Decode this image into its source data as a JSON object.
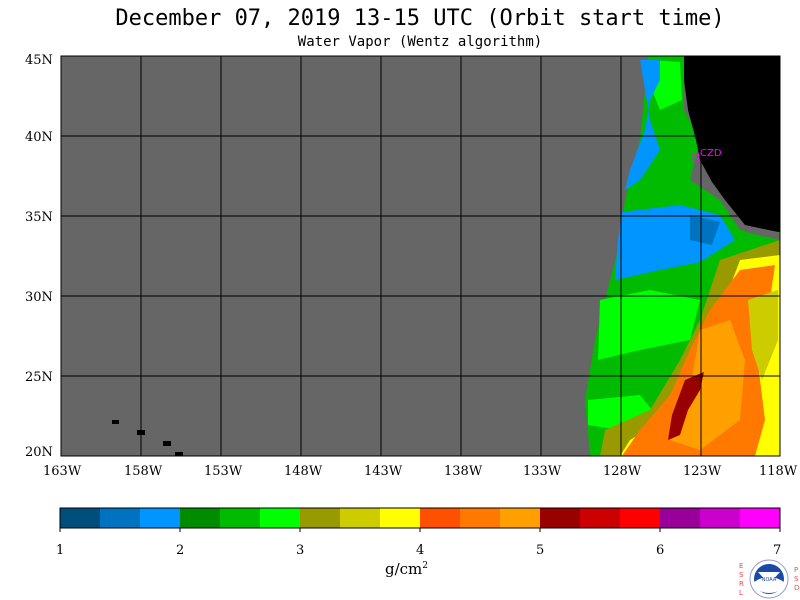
{
  "title": "December 07, 2019  13-15 UTC  (Orbit start time)",
  "subtitle": "Water Vapor (Wentz algorithm)",
  "lat_ticks": [
    "45N",
    "40N",
    "35N",
    "30N",
    "25N",
    "20N"
  ],
  "lon_ticks": [
    "163W",
    "158W",
    "153W",
    "148W",
    "143W",
    "138W",
    "133W",
    "128W",
    "123W",
    "118W"
  ],
  "map_extent": {
    "lon_min": -163,
    "lon_max": -118,
    "lat_min": 20,
    "lat_max": 45
  },
  "station_label": "CZD",
  "colorbar": {
    "colors": [
      "#004e7a",
      "#0073c0",
      "#0095ff",
      "#008c00",
      "#00bb00",
      "#00ff00",
      "#999900",
      "#cccc00",
      "#ffff00",
      "#ff5000",
      "#ff7800",
      "#ffa000",
      "#990000",
      "#cc0000",
      "#ff0000",
      "#990099",
      "#cc00cc",
      "#ff00ff"
    ],
    "tick_labels": [
      "1",
      "2",
      "3",
      "4",
      "5",
      "6",
      "7"
    ],
    "units": "g/cm",
    "units_exp": "2"
  },
  "logo": {
    "left_letters": [
      "E",
      "S",
      "R",
      "L"
    ],
    "right_letters": [
      "P",
      "S",
      "D"
    ],
    "center": "NOAA"
  },
  "colors": {
    "no_data": "#666666",
    "land": "#000000",
    "grid": "#000000",
    "station": "#ff00ff"
  }
}
